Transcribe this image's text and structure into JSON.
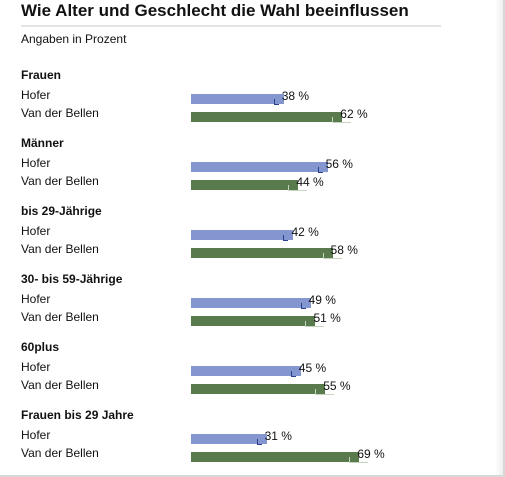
{
  "title": "Wie Alter und Geschlecht die Wahl beeinflussen",
  "subtitle": "Angaben in Prozent",
  "colors": {
    "hofer": "#8496cf",
    "van_der_bellen": "#587a4c"
  },
  "value_suffix": " %",
  "chart_data": {
    "type": "bar",
    "orientation": "horizontal",
    "title": "Wie Alter und Geschlecht die Wahl beeinflussen",
    "subtitle": "Angaben in Prozent",
    "unit": "%",
    "series_labels": [
      "Hofer",
      "Van der Bellen"
    ],
    "groups": [
      {
        "name": "Frauen",
        "values": [
          38,
          62
        ]
      },
      {
        "name": "Männer",
        "values": [
          56,
          44
        ]
      },
      {
        "name": "bis 29-Jährige",
        "values": [
          42,
          58
        ]
      },
      {
        "name": "30- bis 59-Jährige",
        "values": [
          49,
          51
        ]
      },
      {
        "name": "60plus",
        "values": [
          45,
          55
        ]
      },
      {
        "name": "Frauen bis 29 Jahre",
        "values": [
          31,
          69
        ]
      }
    ]
  }
}
